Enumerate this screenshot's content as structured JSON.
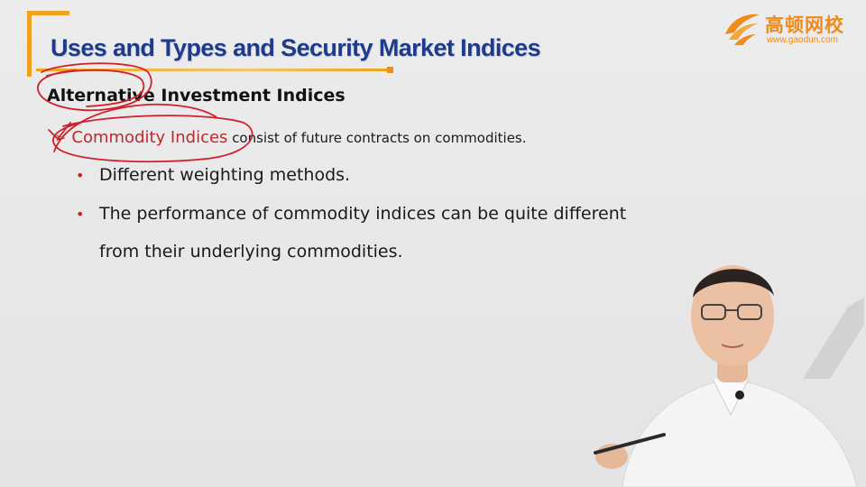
{
  "slide": {
    "title": "Uses and Types and Security Market Indices",
    "heading": "Alternative Investment Indices",
    "lead_key": "Commodity Indices",
    "lead_rest": " consist of future contracts on commodities.",
    "bullets": [
      "Different weighting methods.",
      "The performance of commodity indices can be quite different"
    ],
    "bullet_continuation": "from their underlying commodities."
  },
  "logo": {
    "name_cn": "高顿网校",
    "url": "www.gaodun.com"
  },
  "colors": {
    "title": "#1f3a8a",
    "accent_orange": "#f0a21c",
    "bullet_red": "#c0282d",
    "annotation_red": "#d0202a"
  },
  "icons": {
    "logo_mark": "gaodun-wing-icon",
    "lead_marker": "arrow-bullet-icon"
  }
}
